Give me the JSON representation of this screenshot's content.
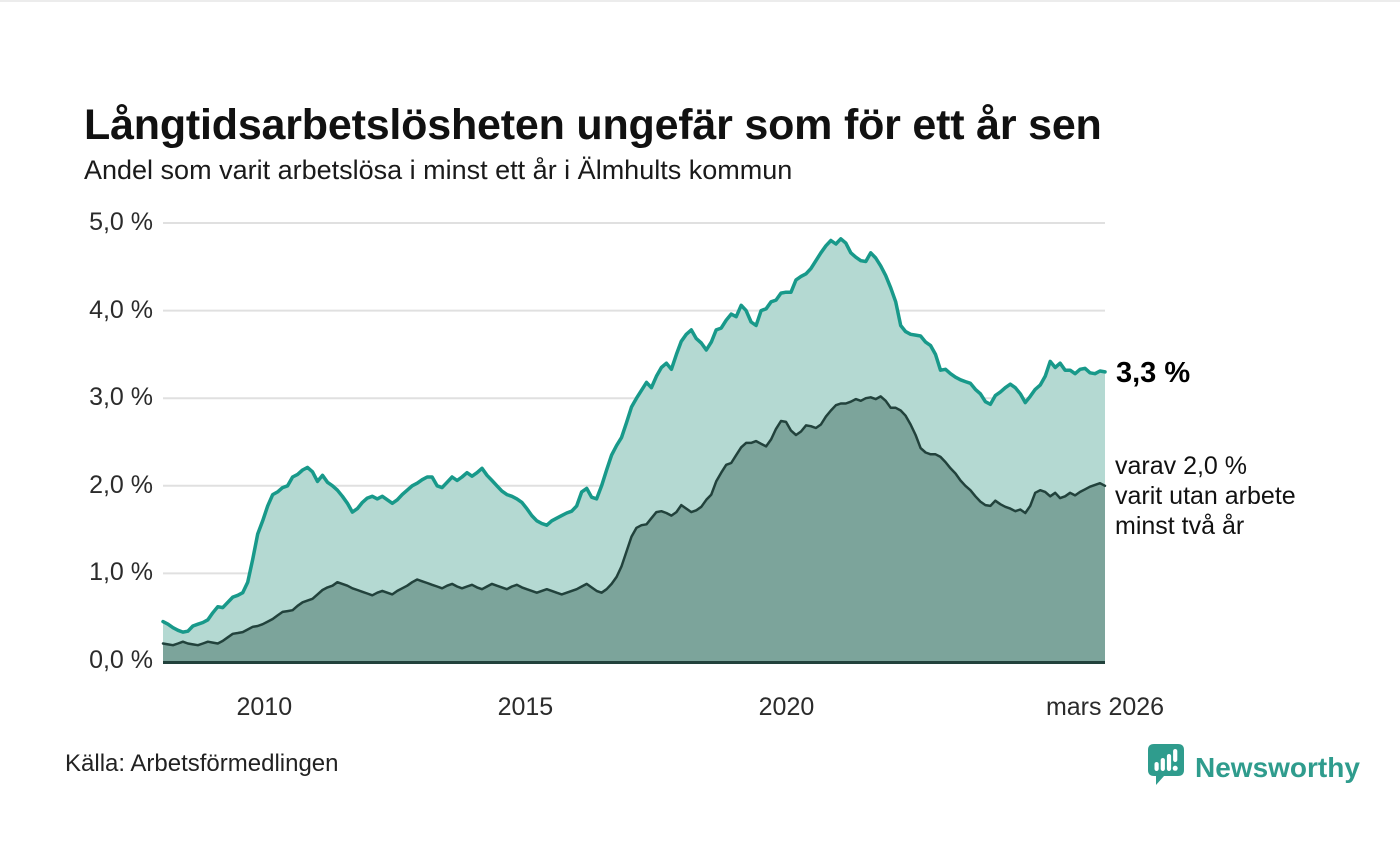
{
  "header": {
    "title": "Långtidsarbetslösheten ungefär som för ett år sen",
    "subtitle": "Andel som varit arbetslösa i minst ett år i Älmhults kommun"
  },
  "annotations": {
    "latest_total": "3,3 %",
    "secondary": "varav 2,0 %\nvarit utan arbete\nminst två år"
  },
  "footer": {
    "source": "Källa: Arbetsförmedlingen",
    "brand": "Newsworthy"
  },
  "colors": {
    "accent_teal": "#18998a",
    "light_fill": "#b4d9d2",
    "dark_line": "#22423c",
    "dark_fill": "#7ca49b",
    "grid": "#e0e0e0",
    "brand_teal": "#2f9c8d"
  },
  "chart_data": {
    "type": "area",
    "title": "Långtidsarbetslösheten ungefär som för ett år sen",
    "subtitle": "Andel som varit arbetslösa i minst ett år i Älmhults kommun",
    "unit": "%",
    "grid": true,
    "legend_position": "none",
    "x_start": 2008.06,
    "x_end": 2026.1,
    "ylim": [
      0,
      5
    ],
    "yticks": [
      {
        "value": 5,
        "label": "5,0 %"
      },
      {
        "value": 4,
        "label": "4,0 %"
      },
      {
        "value": 3,
        "label": "3,0 %"
      },
      {
        "value": 2,
        "label": "2,0 %"
      },
      {
        "value": 1,
        "label": "1,0 %"
      },
      {
        "value": 0,
        "label": "0,0 %"
      }
    ],
    "xticks": [
      {
        "year": 2010,
        "label": "2010"
      },
      {
        "year": 2015,
        "label": "2015"
      },
      {
        "year": 2020,
        "label": "2020"
      },
      {
        "year": 2026.1,
        "label": "mars 2026"
      }
    ],
    "series": [
      {
        "id": "unemployed-at-least-one-year",
        "name": "Andel arbetslösa minst ett år",
        "last_value_label": "3,3 %",
        "line_color": "#18998a",
        "fill_color": "#b4d9d2",
        "line_width": 3.5,
        "values": [
          0.45,
          0.42,
          0.38,
          0.35,
          0.33,
          0.34,
          0.4,
          0.42,
          0.44,
          0.47,
          0.55,
          0.62,
          0.61,
          0.67,
          0.73,
          0.75,
          0.78,
          0.9,
          1.16,
          1.45,
          1.6,
          1.77,
          1.9,
          1.93,
          1.98,
          2.0,
          2.1,
          2.13,
          2.18,
          2.21,
          2.16,
          2.05,
          2.12,
          2.04,
          2.0,
          1.95,
          1.88,
          1.8,
          1.7,
          1.74,
          1.81,
          1.86,
          1.88,
          1.85,
          1.88,
          1.84,
          1.8,
          1.84,
          1.9,
          1.95,
          2.0,
          2.03,
          2.07,
          2.1,
          2.1,
          2.0,
          1.98,
          2.04,
          2.1,
          2.06,
          2.1,
          2.15,
          2.11,
          2.15,
          2.2,
          2.12,
          2.06,
          2.0,
          1.94,
          1.9,
          1.88,
          1.85,
          1.81,
          1.74,
          1.66,
          1.6,
          1.57,
          1.55,
          1.6,
          1.63,
          1.66,
          1.69,
          1.71,
          1.77,
          1.93,
          1.97,
          1.87,
          1.85,
          2.0,
          2.18,
          2.35,
          2.46,
          2.55,
          2.72,
          2.9,
          3.0,
          3.09,
          3.18,
          3.12,
          3.25,
          3.35,
          3.4,
          3.33,
          3.5,
          3.65,
          3.73,
          3.78,
          3.68,
          3.63,
          3.55,
          3.64,
          3.78,
          3.8,
          3.89,
          3.96,
          3.93,
          4.06,
          4.0,
          3.87,
          3.83,
          4.0,
          4.02,
          4.1,
          4.12,
          4.2,
          4.21,
          4.21,
          4.35,
          4.39,
          4.42,
          4.48,
          4.57,
          4.66,
          4.74,
          4.8,
          4.76,
          4.82,
          4.77,
          4.66,
          4.61,
          4.57,
          4.56,
          4.66,
          4.6,
          4.51,
          4.4,
          4.26,
          4.1,
          3.83,
          3.76,
          3.73,
          3.72,
          3.71,
          3.64,
          3.6,
          3.5,
          3.32,
          3.33,
          3.28,
          3.24,
          3.21,
          3.19,
          3.17,
          3.1,
          3.05,
          2.96,
          2.93,
          3.03,
          3.07,
          3.12,
          3.16,
          3.12,
          3.05,
          2.95,
          3.02,
          3.1,
          3.15,
          3.25,
          3.42,
          3.35,
          3.4,
          3.32,
          3.32,
          3.28,
          3.33,
          3.34,
          3.29,
          3.28,
          3.31,
          3.3
        ]
      },
      {
        "id": "unemployed-at-least-two-years",
        "name": "varav arbetslösa minst två år",
        "last_value_label": "2,0 %",
        "line_color": "#22423c",
        "fill_color": "#7ca49b",
        "line_width": 2.5,
        "values": [
          0.2,
          0.19,
          0.18,
          0.2,
          0.22,
          0.2,
          0.19,
          0.18,
          0.2,
          0.22,
          0.21,
          0.2,
          0.23,
          0.27,
          0.31,
          0.32,
          0.33,
          0.36,
          0.39,
          0.4,
          0.42,
          0.45,
          0.48,
          0.52,
          0.56,
          0.57,
          0.58,
          0.63,
          0.67,
          0.69,
          0.71,
          0.76,
          0.81,
          0.84,
          0.86,
          0.9,
          0.88,
          0.86,
          0.83,
          0.81,
          0.79,
          0.77,
          0.75,
          0.78,
          0.8,
          0.78,
          0.76,
          0.8,
          0.83,
          0.86,
          0.9,
          0.93,
          0.91,
          0.89,
          0.87,
          0.85,
          0.83,
          0.86,
          0.88,
          0.85,
          0.83,
          0.85,
          0.87,
          0.84,
          0.82,
          0.85,
          0.88,
          0.86,
          0.84,
          0.82,
          0.85,
          0.87,
          0.84,
          0.82,
          0.8,
          0.78,
          0.8,
          0.82,
          0.8,
          0.78,
          0.76,
          0.78,
          0.8,
          0.82,
          0.85,
          0.88,
          0.84,
          0.8,
          0.78,
          0.82,
          0.88,
          0.96,
          1.08,
          1.25,
          1.42,
          1.52,
          1.55,
          1.56,
          1.63,
          1.7,
          1.71,
          1.69,
          1.66,
          1.7,
          1.78,
          1.74,
          1.7,
          1.72,
          1.76,
          1.84,
          1.9,
          2.05,
          2.15,
          2.24,
          2.26,
          2.35,
          2.44,
          2.49,
          2.49,
          2.51,
          2.48,
          2.45,
          2.53,
          2.65,
          2.74,
          2.73,
          2.63,
          2.58,
          2.62,
          2.69,
          2.68,
          2.66,
          2.7,
          2.79,
          2.86,
          2.92,
          2.94,
          2.94,
          2.96,
          2.99,
          2.97,
          3.0,
          3.01,
          2.99,
          3.02,
          2.97,
          2.89,
          2.89,
          2.86,
          2.8,
          2.7,
          2.58,
          2.43,
          2.38,
          2.36,
          2.36,
          2.33,
          2.27,
          2.2,
          2.14,
          2.06,
          2.0,
          1.95,
          1.88,
          1.82,
          1.78,
          1.77,
          1.83,
          1.79,
          1.76,
          1.74,
          1.71,
          1.73,
          1.69,
          1.77,
          1.92,
          1.95,
          1.93,
          1.88,
          1.92,
          1.86,
          1.88,
          1.92,
          1.89,
          1.93,
          1.96,
          1.99,
          2.01,
          2.03,
          2.0
        ]
      }
    ]
  }
}
